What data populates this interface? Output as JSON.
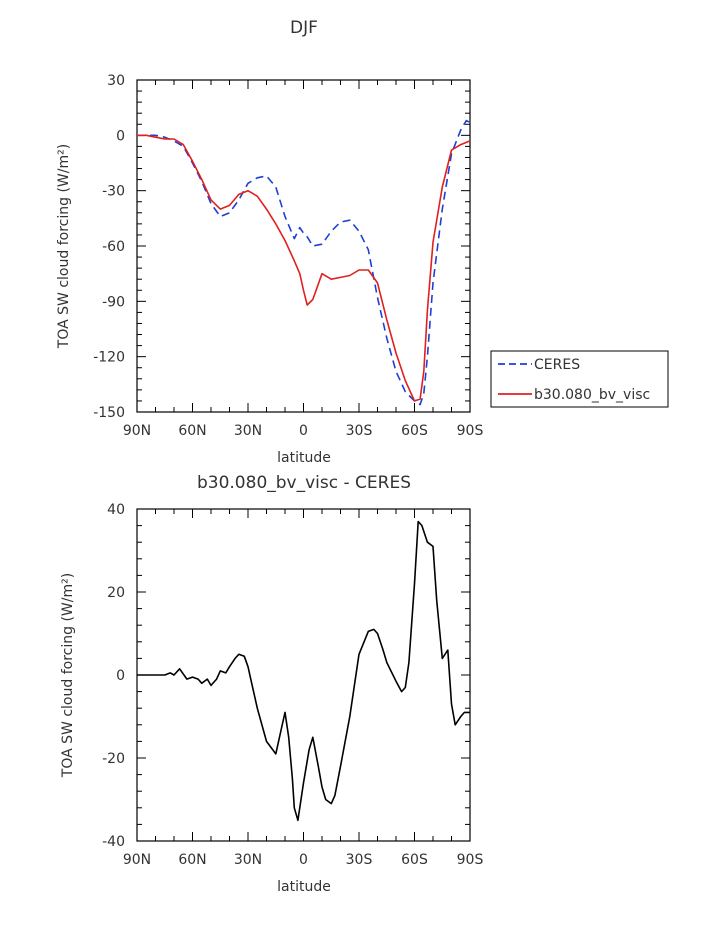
{
  "colors": {
    "ceres": "#1f3fd6",
    "model": "#e0201f",
    "diff": "#000000",
    "axis": "#000000"
  },
  "chart_data": [
    {
      "type": "line",
      "title": "DJF",
      "xlabel": "latitude",
      "ylabel": "TOA SW cloud forcing (W/m²)",
      "ylim": [
        -150,
        30
      ],
      "yticks": [
        30,
        0,
        -30,
        -60,
        -90,
        -120,
        -150
      ],
      "ytick_labels": [
        "30",
        "0",
        "-30",
        "-60",
        "-90",
        "-120",
        "-150"
      ],
      "xlim": [
        90,
        -90
      ],
      "xticks": [
        90,
        60,
        30,
        0,
        -30,
        -60,
        -90
      ],
      "xtick_labels": [
        "90N",
        "60N",
        "30N",
        "0",
        "30S",
        "60S",
        "90S"
      ],
      "legend": "right",
      "series": [
        {
          "name": "CERES",
          "style": "dashed",
          "x": [
            90,
            85,
            80,
            75,
            70,
            65,
            60,
            55,
            50,
            45,
            40,
            35,
            30,
            25,
            20,
            15,
            10,
            5,
            2,
            0,
            -2,
            -5,
            -10,
            -15,
            -20,
            -25,
            -30,
            -35,
            -40,
            -45,
            -50,
            -55,
            -60,
            -63,
            -65,
            -67,
            -70,
            -75,
            -80,
            -85,
            -88,
            -90
          ],
          "y": [
            0,
            0,
            0,
            -1,
            -3,
            -6,
            -15,
            -25,
            -37,
            -44,
            -42,
            -35,
            -26,
            -23,
            -22,
            -28,
            -44,
            -56,
            -50,
            -53,
            -55,
            -60,
            -59,
            -52,
            -47,
            -46,
            -52,
            -62,
            -88,
            -110,
            -128,
            -139,
            -144,
            -146,
            -140,
            -120,
            -80,
            -40,
            -10,
            3,
            8,
            7
          ]
        },
        {
          "name": "b30.080_bv_visc",
          "style": "solid",
          "x": [
            90,
            85,
            80,
            75,
            70,
            65,
            60,
            55,
            50,
            45,
            40,
            35,
            30,
            25,
            20,
            15,
            10,
            5,
            2,
            0,
            -2,
            -5,
            -10,
            -15,
            -20,
            -25,
            -30,
            -35,
            -40,
            -45,
            -50,
            -55,
            -60,
            -63,
            -65,
            -67,
            -70,
            -75,
            -80,
            -85,
            -90
          ],
          "y": [
            0,
            0,
            -1,
            -2,
            -2,
            -5,
            -14,
            -24,
            -35,
            -40,
            -38,
            -32,
            -30,
            -33,
            -40,
            -48,
            -57,
            -68,
            -75,
            -84,
            -92,
            -89,
            -75,
            -78,
            -77,
            -76,
            -73,
            -73,
            -80,
            -100,
            -118,
            -133,
            -144,
            -143,
            -128,
            -95,
            -58,
            -28,
            -8,
            -5,
            -3
          ]
        }
      ]
    },
    {
      "type": "line",
      "title": "b30.080_bv_visc - CERES",
      "xlabel": "latitude",
      "ylabel": "TOA SW cloud forcing (W/m²)",
      "ylim": [
        -40,
        40
      ],
      "yticks": [
        40,
        20,
        0,
        -20,
        -40
      ],
      "ytick_labels": [
        "40",
        "20",
        "0",
        "-20",
        "-40"
      ],
      "xlim": [
        90,
        -90
      ],
      "xticks": [
        90,
        60,
        30,
        0,
        -30,
        -60,
        -90
      ],
      "xtick_labels": [
        "90N",
        "60N",
        "30N",
        "0",
        "30S",
        "60S",
        "90S"
      ],
      "series": [
        {
          "style": "solid",
          "x": [
            90,
            80,
            75,
            72,
            70,
            67,
            63,
            60,
            57,
            55,
            52,
            50,
            47,
            45,
            42,
            40,
            37,
            35,
            32,
            30,
            28,
            25,
            20,
            15,
            12,
            10,
            8,
            6,
            5,
            3,
            0,
            -3,
            -5,
            -8,
            -10,
            -12,
            -15,
            -17,
            -20,
            -25,
            -30,
            -35,
            -38,
            -40,
            -43,
            -45,
            -50,
            -53,
            -55,
            -57,
            -60,
            -62,
            -64,
            -67,
            -70,
            -72,
            -75,
            -78,
            -80,
            -82,
            -85,
            -87,
            -90
          ],
          "y": [
            0,
            0,
            0,
            0.5,
            0,
            1.5,
            -1,
            -0.5,
            -1,
            -2,
            -1,
            -2.5,
            -1,
            1,
            0.5,
            2,
            4,
            5,
            4.5,
            2,
            -2,
            -8,
            -16,
            -19,
            -13,
            -9,
            -15,
            -25,
            -32,
            -35,
            -26,
            -18,
            -15,
            -22,
            -27,
            -30,
            -31,
            -29,
            -22,
            -10,
            5,
            10.5,
            11,
            10,
            6,
            3,
            -1.5,
            -4,
            -3,
            3,
            22,
            37,
            36,
            32,
            31,
            18,
            4,
            6,
            -7,
            -12,
            -10,
            -9,
            -9
          ]
        }
      ]
    }
  ]
}
